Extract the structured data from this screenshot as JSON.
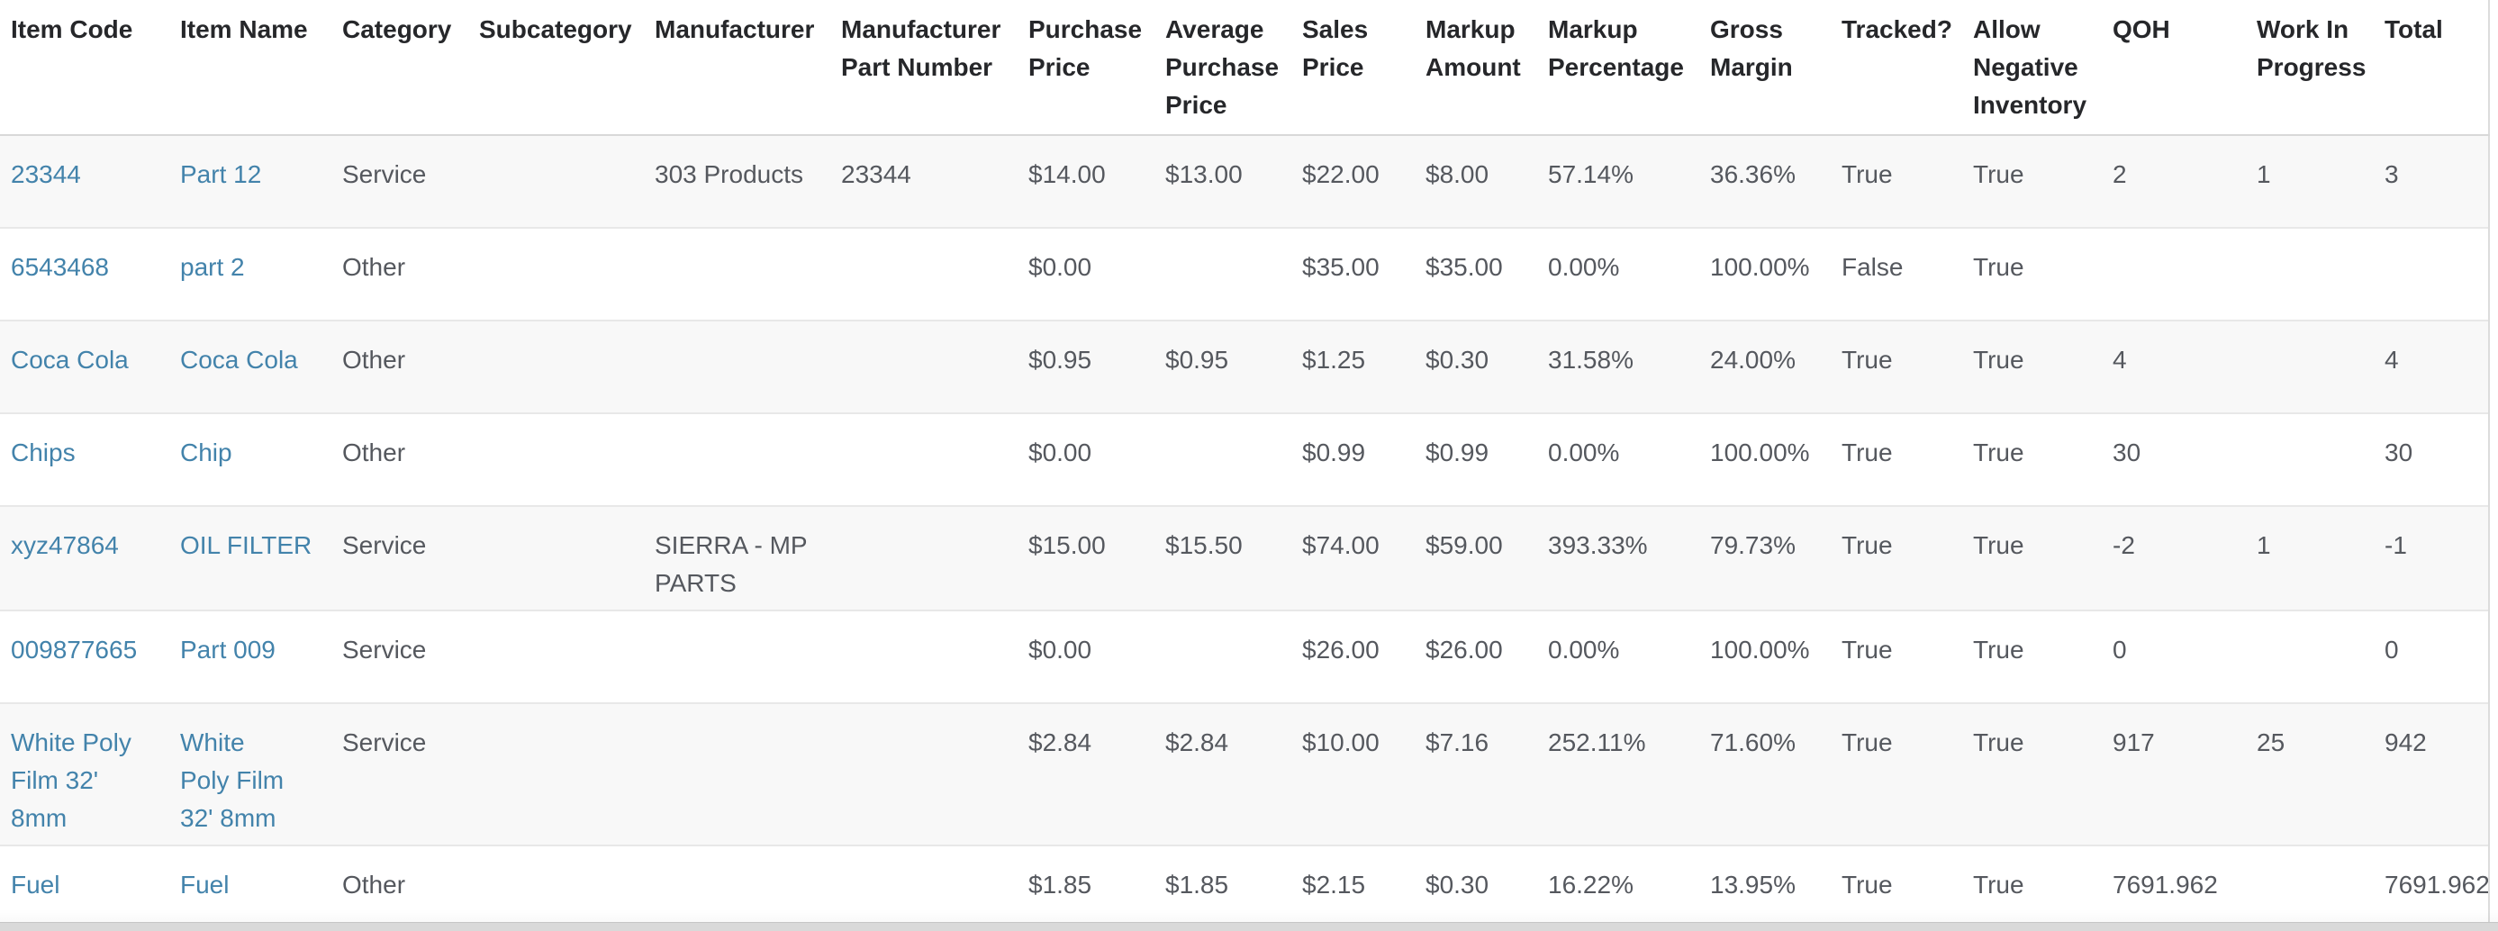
{
  "table": {
    "columns": [
      {
        "key": "item_code",
        "label": "Item Code"
      },
      {
        "key": "item_name",
        "label": "Item Name"
      },
      {
        "key": "category",
        "label": "Category"
      },
      {
        "key": "subcategory",
        "label": "Subcategory"
      },
      {
        "key": "manufacturer",
        "label": "Manufacturer"
      },
      {
        "key": "manufacturer_part_number",
        "label": "Manufacturer Part Number"
      },
      {
        "key": "purchase_price",
        "label": "Purchase Price"
      },
      {
        "key": "average_purchase_price",
        "label": "Average Purchase Price"
      },
      {
        "key": "sales_price",
        "label": "Sales Price"
      },
      {
        "key": "markup_amount",
        "label": "Markup Amount"
      },
      {
        "key": "markup_percentage",
        "label": "Markup Percentage"
      },
      {
        "key": "gross_margin",
        "label": "Gross Margin"
      },
      {
        "key": "tracked",
        "label": "Tracked?"
      },
      {
        "key": "allow_negative_inventory",
        "label": "Allow Negative Inventory"
      },
      {
        "key": "qoh",
        "label": "QOH"
      },
      {
        "key": "work_in_progress",
        "label": "Work In Progress"
      },
      {
        "key": "total",
        "label": "Total"
      }
    ],
    "link_columns": [
      "item_code",
      "item_name"
    ],
    "rows": [
      {
        "item_code": "23344",
        "item_name": "Part 12",
        "category": "Service",
        "subcategory": "",
        "manufacturer": "303 Products",
        "manufacturer_part_number": "23344",
        "purchase_price": "$14.00",
        "average_purchase_price": "$13.00",
        "sales_price": "$22.00",
        "markup_amount": "$8.00",
        "markup_percentage": "57.14%",
        "gross_margin": "36.36%",
        "tracked": "True",
        "allow_negative_inventory": "True",
        "qoh": "2",
        "work_in_progress": "1",
        "total": "3"
      },
      {
        "item_code": "6543468",
        "item_name": "part 2",
        "category": "Other",
        "subcategory": "",
        "manufacturer": "",
        "manufacturer_part_number": "",
        "purchase_price": "$0.00",
        "average_purchase_price": "",
        "sales_price": "$35.00",
        "markup_amount": "$35.00",
        "markup_percentage": "0.00%",
        "gross_margin": "100.00%",
        "tracked": "False",
        "allow_negative_inventory": "True",
        "qoh": "",
        "work_in_progress": "",
        "total": ""
      },
      {
        "item_code": "Coca Cola",
        "item_name": "Coca Cola",
        "category": "Other",
        "subcategory": "",
        "manufacturer": "",
        "manufacturer_part_number": "",
        "purchase_price": "$0.95",
        "average_purchase_price": "$0.95",
        "sales_price": "$1.25",
        "markup_amount": "$0.30",
        "markup_percentage": "31.58%",
        "gross_margin": "24.00%",
        "tracked": "True",
        "allow_negative_inventory": "True",
        "qoh": "4",
        "work_in_progress": "",
        "total": "4"
      },
      {
        "item_code": "Chips",
        "item_name": "Chip",
        "category": "Other",
        "subcategory": "",
        "manufacturer": "",
        "manufacturer_part_number": "",
        "purchase_price": "$0.00",
        "average_purchase_price": "",
        "sales_price": "$0.99",
        "markup_amount": "$0.99",
        "markup_percentage": "0.00%",
        "gross_margin": "100.00%",
        "tracked": "True",
        "allow_negative_inventory": "True",
        "qoh": "30",
        "work_in_progress": "",
        "total": "30"
      },
      {
        "item_code": "xyz47864",
        "item_name": "OIL FILTER",
        "category": "Service",
        "subcategory": "",
        "manufacturer": "SIERRA - MP\nPARTS",
        "manufacturer_part_number": "",
        "purchase_price": "$15.00",
        "average_purchase_price": "$15.50",
        "sales_price": "$74.00",
        "markup_amount": "$59.00",
        "markup_percentage": "393.33%",
        "gross_margin": "79.73%",
        "tracked": "True",
        "allow_negative_inventory": "True",
        "qoh": "-2",
        "work_in_progress": "1",
        "total": "-1"
      },
      {
        "item_code": "009877665",
        "item_name": "Part 009",
        "category": "Service",
        "subcategory": "",
        "manufacturer": "",
        "manufacturer_part_number": "",
        "purchase_price": "$0.00",
        "average_purchase_price": "",
        "sales_price": "$26.00",
        "markup_amount": "$26.00",
        "markup_percentage": "0.00%",
        "gross_margin": "100.00%",
        "tracked": "True",
        "allow_negative_inventory": "True",
        "qoh": "0",
        "work_in_progress": "",
        "total": "0"
      },
      {
        "item_code": "White Poly\nFilm 32'\n8mm",
        "item_name": "White\nPoly Film\n32' 8mm",
        "category": "Service",
        "subcategory": "",
        "manufacturer": "",
        "manufacturer_part_number": "",
        "purchase_price": "$2.84",
        "average_purchase_price": "$2.84",
        "sales_price": "$10.00",
        "markup_amount": "$7.16",
        "markup_percentage": "252.11%",
        "gross_margin": "71.60%",
        "tracked": "True",
        "allow_negative_inventory": "True",
        "qoh": "917",
        "work_in_progress": "25",
        "total": "942"
      },
      {
        "item_code": "Fuel",
        "item_name": "Fuel",
        "category": "Other",
        "subcategory": "",
        "manufacturer": "",
        "manufacturer_part_number": "",
        "purchase_price": "$1.85",
        "average_purchase_price": "$1.85",
        "sales_price": "$2.15",
        "markup_amount": "$0.30",
        "markup_percentage": "16.22%",
        "gross_margin": "13.95%",
        "tracked": "True",
        "allow_negative_inventory": "True",
        "qoh": "7691.962",
        "work_in_progress": "",
        "total": "7691.962"
      }
    ],
    "colors": {
      "link": "#4383ab",
      "header_text": "#26272a",
      "cell_text": "#55585e",
      "row_alt_bg": "#f8f8f8",
      "row_border": "#e8e8e8",
      "header_border": "#d8d8d8",
      "table_right_border": "#dcdcdc",
      "scrollbar_track": "#d9d9d9",
      "scrollbar_edge": "#c6c6c6"
    }
  }
}
